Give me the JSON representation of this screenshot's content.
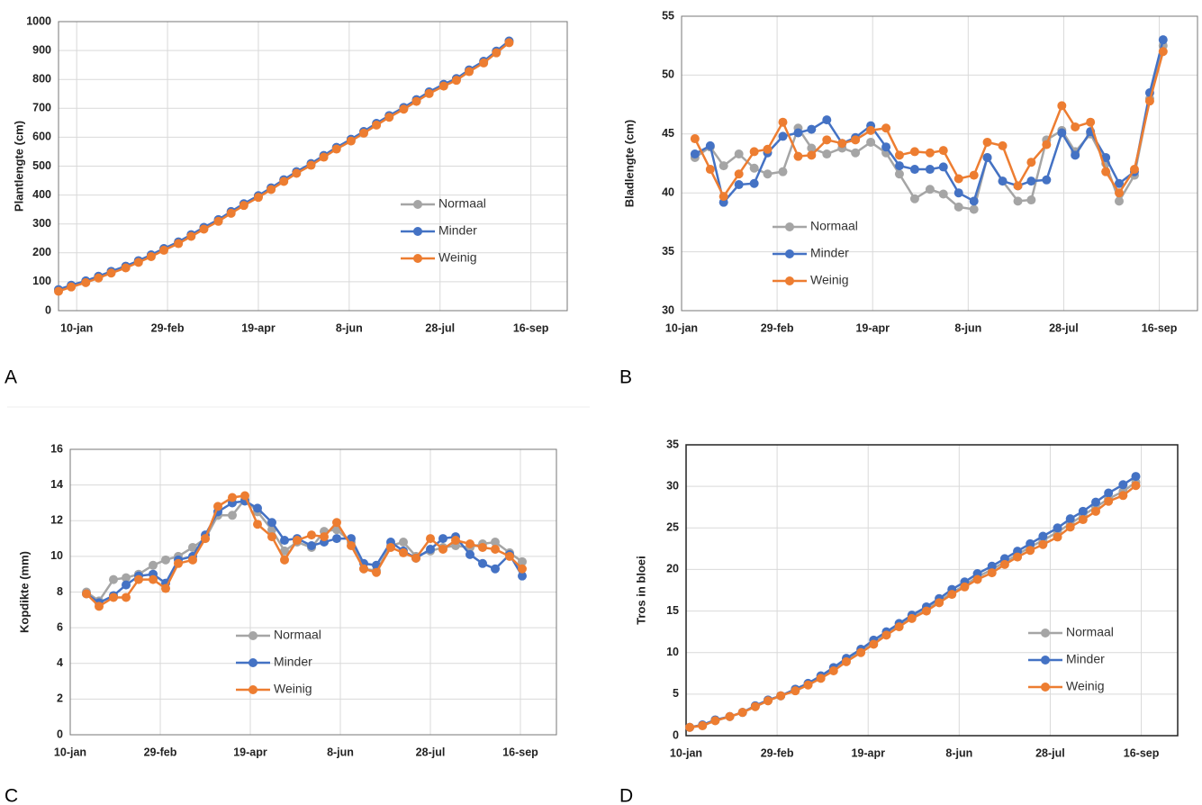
{
  "chart_data": [
    {
      "type": "line",
      "label": "A",
      "ylabel": "Plantlengte (cm)",
      "x": [
        -10,
        -3,
        5,
        12,
        19,
        27,
        34,
        41,
        48,
        56,
        63,
        70,
        78,
        85,
        92,
        100,
        107,
        114,
        121,
        129,
        136,
        143,
        151,
        158,
        165,
        172,
        180,
        187,
        194,
        202,
        209,
        216,
        224,
        231,
        238
      ],
      "xlim": [
        -10,
        270
      ],
      "xticks": [
        {
          "value": 0,
          "label": "10-jan"
        },
        {
          "value": 50,
          "label": "29-feb"
        },
        {
          "value": 100,
          "label": "19-apr"
        },
        {
          "value": 150,
          "label": "8-jun"
        },
        {
          "value": 200,
          "label": "28-jul"
        },
        {
          "value": 250,
          "label": "16-sep"
        }
      ],
      "ylim": [
        0,
        1000
      ],
      "yticks": [
        0,
        100,
        200,
        300,
        400,
        500,
        600,
        700,
        800,
        900,
        1000
      ],
      "grid": true,
      "series": [
        {
          "name": "Normaal",
          "color": "#a5a5a5",
          "values": [
            72,
            87,
            102,
            118,
            135,
            153,
            172,
            192,
            214,
            237,
            262,
            287,
            314,
            342,
            369,
            397,
            424,
            452,
            480,
            508,
            536,
            564,
            592,
            619,
            647,
            674,
            702,
            729,
            756,
            782,
            802,
            832,
            862,
            897,
            932
          ]
        },
        {
          "name": "Minder",
          "color": "#4472c4",
          "values": [
            73,
            88,
            103,
            119,
            136,
            154,
            173,
            193,
            215,
            238,
            263,
            288,
            315,
            343,
            370,
            398,
            425,
            453,
            481,
            509,
            537,
            565,
            593,
            620,
            648,
            675,
            703,
            730,
            757,
            783,
            803,
            833,
            863,
            898,
            933
          ]
        },
        {
          "name": "Weinig",
          "color": "#ed7d31",
          "values": [
            67,
            82,
            97,
            113,
            130,
            148,
            167,
            187,
            209,
            232,
            257,
            282,
            309,
            337,
            364,
            392,
            419,
            447,
            475,
            503,
            531,
            559,
            587,
            614,
            642,
            669,
            697,
            724,
            751,
            777,
            797,
            827,
            857,
            892,
            927
          ]
        }
      ]
    },
    {
      "type": "line",
      "label": "B",
      "ylabel": "Bladlengte (cm)",
      "x": [
        7,
        15,
        22,
        30,
        38,
        45,
        53,
        61,
        68,
        76,
        84,
        91,
        99,
        107,
        114,
        122,
        130,
        137,
        145,
        153,
        160,
        168,
        176,
        183,
        191,
        199,
        206,
        214,
        222,
        229,
        237,
        245,
        252
      ],
      "xlim": [
        0,
        270
      ],
      "xticks": [
        {
          "value": 0,
          "label": "10-jan"
        },
        {
          "value": 50,
          "label": "29-feb"
        },
        {
          "value": 100,
          "label": "19-apr"
        },
        {
          "value": 150,
          "label": "8-jun"
        },
        {
          "value": 200,
          "label": "28-jul"
        },
        {
          "value": 250,
          "label": "16-sep"
        }
      ],
      "ylim": [
        30,
        55
      ],
      "yticks": [
        30,
        35,
        40,
        45,
        50,
        55
      ],
      "grid": true,
      "series": [
        {
          "name": "Normaal",
          "color": "#a5a5a5",
          "values": [
            43,
            43.9,
            42.3,
            43.3,
            42.1,
            41.6,
            41.8,
            45.5,
            43.8,
            43.3,
            43.8,
            43.4,
            44.3,
            43.4,
            41.6,
            39.5,
            40.3,
            39.9,
            38.8,
            38.6,
            43,
            41,
            39.3,
            39.4,
            44.5,
            45.3,
            43.5,
            45,
            42.5,
            39.3,
            41.5,
            48,
            52.5
          ]
        },
        {
          "name": "Minder",
          "color": "#4472c4",
          "values": [
            43.3,
            44,
            39.2,
            40.7,
            40.8,
            43.4,
            44.8,
            45.1,
            45.4,
            46.2,
            44.2,
            44.7,
            45.7,
            43.9,
            42.3,
            42,
            42,
            42.2,
            40,
            39.3,
            43,
            41,
            40.6,
            41,
            41.1,
            45.1,
            43.2,
            45.2,
            43,
            40.8,
            41.8,
            48.5,
            53
          ]
        },
        {
          "name": "Weinig",
          "color": "#ed7d31",
          "values": [
            44.6,
            42,
            39.7,
            41.6,
            43.5,
            43.7,
            46,
            43.1,
            43.2,
            44.5,
            44.2,
            44.5,
            45.3,
            45.5,
            43.2,
            43.5,
            43.4,
            43.6,
            41.2,
            41.5,
            44.3,
            44,
            40.6,
            42.6,
            44.1,
            47.4,
            45.6,
            46,
            41.8,
            40,
            42,
            47.8,
            52
          ]
        }
      ]
    },
    {
      "type": "line",
      "label": "C",
      "ylabel": "Kopdikte (mm)",
      "x": [
        9,
        16,
        24,
        31,
        38,
        46,
        53,
        60,
        68,
        75,
        82,
        90,
        97,
        104,
        112,
        119,
        126,
        134,
        141,
        148,
        156,
        163,
        170,
        178,
        185,
        192,
        200,
        207,
        214,
        222,
        229,
        236,
        244,
        251
      ],
      "xlim": [
        0,
        270
      ],
      "xticks": [
        {
          "value": 0,
          "label": "10-jan"
        },
        {
          "value": 50,
          "label": "29-feb"
        },
        {
          "value": 100,
          "label": "19-apr"
        },
        {
          "value": 150,
          "label": "8-jun"
        },
        {
          "value": 200,
          "label": "28-jul"
        },
        {
          "value": 250,
          "label": "16-sep"
        }
      ],
      "ylim": [
        0,
        16
      ],
      "yticks": [
        0,
        2,
        4,
        6,
        8,
        10,
        12,
        14,
        16
      ],
      "grid": true,
      "series": [
        {
          "name": "Normaal",
          "color": "#a5a5a5",
          "values": [
            8.0,
            7.5,
            8.7,
            8.8,
            9.0,
            9.5,
            9.8,
            10.0,
            10.5,
            11.0,
            12.3,
            12.3,
            13.2,
            12.5,
            11.5,
            10.3,
            10.8,
            10.5,
            11.4,
            11.5,
            10.8,
            9.3,
            9.2,
            10.6,
            10.8,
            10.0,
            10.3,
            10.5,
            10.6,
            10.5,
            10.7,
            10.8,
            10.2,
            9.7
          ]
        },
        {
          "name": "Minder",
          "color": "#4472c4",
          "values": [
            7.9,
            7.4,
            7.8,
            8.4,
            8.9,
            9.0,
            8.5,
            9.8,
            10.0,
            11.2,
            12.5,
            13.0,
            13.1,
            12.7,
            11.9,
            10.9,
            11.0,
            10.6,
            10.8,
            11.0,
            11.0,
            9.6,
            9.5,
            10.8,
            10.3,
            9.9,
            10.4,
            11.0,
            11.1,
            10.1,
            9.6,
            9.3,
            10.1,
            8.9
          ]
        },
        {
          "name": "Weinig",
          "color": "#ed7d31",
          "values": [
            7.9,
            7.2,
            7.7,
            7.7,
            8.7,
            8.7,
            8.2,
            9.6,
            9.8,
            11.0,
            12.8,
            13.3,
            13.4,
            11.8,
            11.1,
            9.8,
            10.9,
            11.2,
            11.1,
            11.9,
            10.6,
            9.3,
            9.1,
            10.5,
            10.2,
            9.9,
            11.0,
            10.4,
            10.9,
            10.7,
            10.5,
            10.4,
            10.0,
            9.3
          ]
        }
      ]
    },
    {
      "type": "line",
      "label": "D",
      "ylabel": "Tros in bloei",
      "x": [
        2,
        9,
        16,
        24,
        31,
        38,
        45,
        52,
        60,
        67,
        74,
        81,
        88,
        96,
        103,
        110,
        117,
        124,
        132,
        139,
        146,
        153,
        160,
        168,
        175,
        182,
        189,
        196,
        204,
        211,
        218,
        225,
        232,
        240,
        247
      ],
      "xlim": [
        0,
        270
      ],
      "xticks": [
        {
          "value": 0,
          "label": "10-jan"
        },
        {
          "value": 50,
          "label": "29-feb"
        },
        {
          "value": 100,
          "label": "19-apr"
        },
        {
          "value": 150,
          "label": "8-jun"
        },
        {
          "value": 200,
          "label": "28-jul"
        },
        {
          "value": 250,
          "label": "16-sep"
        }
      ],
      "ylim": [
        0,
        35
      ],
      "yticks": [
        0,
        5,
        10,
        15,
        20,
        25,
        30,
        35
      ],
      "grid": true,
      "series": [
        {
          "name": "Normaal",
          "color": "#a5a5a5",
          "values": [
            1.0,
            1.2,
            1.8,
            2.3,
            2.8,
            3.5,
            4.2,
            4.8,
            5.5,
            6.2,
            7.1,
            8.1,
            9.1,
            10.2,
            11.2,
            12.2,
            13.2,
            14.2,
            15.2,
            16.2,
            17.2,
            18.1,
            19.1,
            20.0,
            20.9,
            21.8,
            22.7,
            23.5,
            24.5,
            25.5,
            26.5,
            27.5,
            28.5,
            29.4,
            30.5
          ]
        },
        {
          "name": "Minder",
          "color": "#4472c4",
          "values": [
            1.0,
            1.3,
            1.9,
            2.3,
            2.8,
            3.6,
            4.3,
            4.8,
            5.6,
            6.3,
            7.2,
            8.2,
            9.3,
            10.4,
            11.5,
            12.5,
            13.5,
            14.5,
            15.5,
            16.5,
            17.6,
            18.5,
            19.5,
            20.4,
            21.3,
            22.2,
            23.1,
            24.0,
            25.0,
            26.1,
            27.0,
            28.1,
            29.2,
            30.2,
            31.2
          ]
        },
        {
          "name": "Weinig",
          "color": "#ed7d31",
          "values": [
            1.0,
            1.2,
            1.8,
            2.3,
            2.8,
            3.5,
            4.2,
            4.8,
            5.4,
            6.1,
            6.9,
            7.8,
            8.9,
            10.0,
            11.0,
            12.1,
            13.1,
            14.1,
            15.0,
            16.0,
            17.0,
            17.9,
            18.8,
            19.6,
            20.6,
            21.5,
            22.3,
            23.0,
            23.9,
            25.1,
            26.0,
            27.0,
            28.2,
            28.9,
            30.1
          ]
        }
      ]
    }
  ]
}
